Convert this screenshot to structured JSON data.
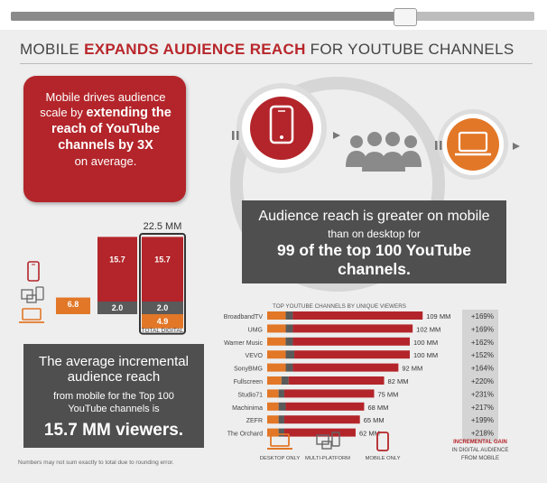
{
  "headline": {
    "part1": "MOBILE ",
    "emphasis": "EXPANDS AUDIENCE REACH",
    "part2": " FOR YOUTUBE CHANNELS"
  },
  "red_box": {
    "line1": "Mobile drives audience",
    "line2a": "scale by ",
    "line2b": "extending the",
    "line3": "reach of YouTube",
    "line4": "channels by 3X",
    "line5": "on average."
  },
  "reach_box": {
    "line1": "Audience reach is greater on mobile",
    "line2": "than on desktop for",
    "line3": "99 of the top 100 YouTube",
    "line4": "channels."
  },
  "incremental_box": {
    "line1": "The average incremental",
    "line2": "audience reach",
    "line3": "from mobile for the Top 100",
    "line4": "YouTube channels is",
    "line5": "15.7 MM viewers."
  },
  "footnote": "Numbers may not sum exactly to total due to rounding error.",
  "colors": {
    "red": "#b3252a",
    "orange": "#e27727",
    "gray": "#5a5a5a",
    "dark": "#4f4f4f"
  },
  "chart_data": [
    {
      "type": "bar",
      "title": "",
      "categories": [
        "Desktop",
        "Multi-platform",
        "Mobile",
        "Total Digital"
      ],
      "total_label": "22.5 MM",
      "category_label": "TOTAL DIGITAL",
      "stack": {
        "desktop_only": {
          "value": 6.8,
          "label": "6.8"
        },
        "multi_platform": {
          "value": 2.0,
          "label": "2.0"
        },
        "mobile_only": {
          "value": 15.7,
          "label": "15.7"
        },
        "total_desktop": {
          "value": 4.9,
          "label": "4.9"
        },
        "total_multi": {
          "value": 2.0,
          "label": "2.0"
        },
        "total_mobile": {
          "value": 15.7,
          "label": "15.7"
        }
      }
    },
    {
      "type": "bar",
      "title": "TOP YOUTUBE CHANNELS BY UNIQUE VIEWERS",
      "xlim": [
        0,
        110
      ],
      "series_names": [
        "Desktop only",
        "Multi-platform",
        "Mobile only"
      ],
      "rows": [
        {
          "name": "BroadbandTV",
          "desktop": 13,
          "multi": 5,
          "mobile": 91,
          "total_label": "109 MM",
          "gain": "+169%"
        },
        {
          "name": "UMG",
          "desktop": 13,
          "multi": 5,
          "mobile": 84,
          "total_label": "102 MM",
          "gain": "+169%"
        },
        {
          "name": "Warner Music",
          "desktop": 13,
          "multi": 5,
          "mobile": 82,
          "total_label": "100 MM",
          "gain": "+162%"
        },
        {
          "name": "VEVO",
          "desktop": 13,
          "multi": 6,
          "mobile": 81,
          "total_label": "100 MM",
          "gain": "+152%"
        },
        {
          "name": "SonyBMG",
          "desktop": 13,
          "multi": 5,
          "mobile": 74,
          "total_label": "92 MM",
          "gain": "+164%"
        },
        {
          "name": "Fullscreen",
          "desktop": 10,
          "multi": 5,
          "mobile": 67,
          "total_label": "82 MM",
          "gain": "+220%"
        },
        {
          "name": "Studio71",
          "desktop": 8,
          "multi": 4,
          "mobile": 63,
          "total_label": "75 MM",
          "gain": "+231%"
        },
        {
          "name": "Machinima",
          "desktop": 8,
          "multi": 5,
          "mobile": 55,
          "total_label": "68 MM",
          "gain": "+217%"
        },
        {
          "name": "ZEFR",
          "desktop": 8,
          "multi": 4,
          "mobile": 53,
          "total_label": "65 MM",
          "gain": "+199%"
        },
        {
          "name": "The Orchard",
          "desktop": 8,
          "multi": 4,
          "mobile": 50,
          "total_label": "62 MM",
          "gain": "+218%"
        }
      ],
      "legend": {
        "desktop": "DESKTOP ONLY",
        "multi": "MULTI-PLATFORM",
        "mobile": "MOBILE ONLY"
      },
      "gain_caption": {
        "line1": "INCREMENTAL GAIN",
        "line2": "IN DIGITAL AUDIENCE",
        "line3": "FROM MOBILE"
      }
    }
  ]
}
